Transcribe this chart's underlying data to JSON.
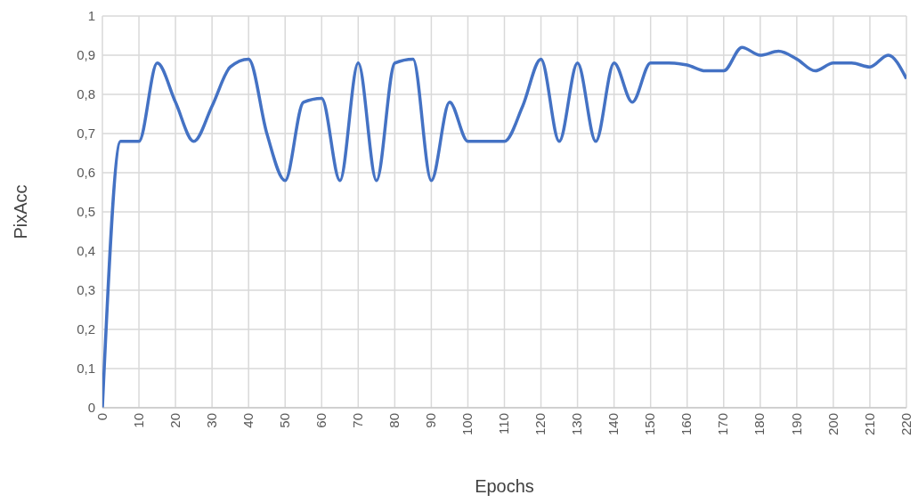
{
  "chart_data": {
    "type": "line",
    "xlabel": "Epochs",
    "ylabel": "PixAcc",
    "x": [
      0,
      5,
      10,
      15,
      20,
      25,
      30,
      35,
      40,
      45,
      50,
      55,
      60,
      65,
      70,
      75,
      80,
      85,
      90,
      95,
      100,
      105,
      110,
      115,
      120,
      125,
      130,
      135,
      140,
      145,
      150,
      155,
      160,
      165,
      170,
      175,
      180,
      185,
      190,
      195,
      200,
      205,
      210,
      215,
      220
    ],
    "series": [
      {
        "color": "#4472c4",
        "values": [
          0,
          0.68,
          0.68,
          0.88,
          0.78,
          0.68,
          0.77,
          0.87,
          0.89,
          0.7,
          0.58,
          0.78,
          0.79,
          0.58,
          0.88,
          0.58,
          0.88,
          0.89,
          0.58,
          0.78,
          0.68,
          0.68,
          0.68,
          0.77,
          0.89,
          0.68,
          0.88,
          0.68,
          0.88,
          0.78,
          0.88,
          0.88,
          0.875,
          0.86,
          0.86,
          0.92,
          0.9,
          0.91,
          0.89,
          0.86,
          0.88,
          0.88,
          0.87,
          0.9,
          0.84
        ]
      }
    ],
    "xlim": [
      0,
      220
    ],
    "xticks": [
      0,
      10,
      20,
      30,
      40,
      50,
      60,
      70,
      80,
      90,
      100,
      110,
      120,
      130,
      140,
      150,
      160,
      170,
      180,
      190,
      200,
      210,
      220
    ],
    "ylim": [
      0,
      1
    ],
    "yticks": [
      0,
      {
        "value": 0.1,
        "label": "0,1"
      },
      {
        "value": 0.2,
        "label": "0,2"
      },
      {
        "value": 0.3,
        "label": "0,3"
      },
      {
        "value": 0.4,
        "label": "0,4"
      },
      {
        "value": 0.5,
        "label": "0,5"
      },
      {
        "value": 0.6,
        "label": "0,6"
      },
      {
        "value": 0.7,
        "label": "0,7"
      },
      {
        "value": 0.8,
        "label": "0,8"
      },
      {
        "value": 0.9,
        "label": "0,9"
      },
      1
    ],
    "grid": true,
    "marker": "none",
    "line_style": "solid"
  }
}
